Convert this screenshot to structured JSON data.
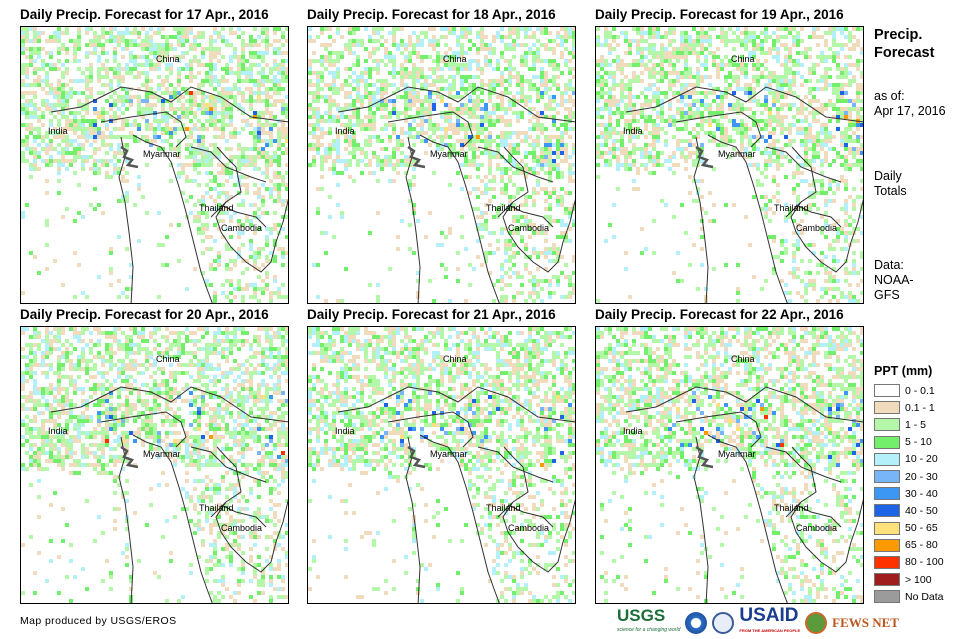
{
  "panels": [
    {
      "title": "Daily Precip. Forecast for 17 Apr., 2016"
    },
    {
      "title": "Daily Precip. Forecast for 18 Apr., 2016"
    },
    {
      "title": "Daily Precip. Forecast for 19 Apr., 2016"
    },
    {
      "title": "Daily Precip. Forecast for 20 Apr., 2016"
    },
    {
      "title": "Daily Precip. Forecast for 21 Apr., 2016"
    },
    {
      "title": "Daily Precip. Forecast for 22 Apr., 2016"
    }
  ],
  "countries": [
    "China",
    "India",
    "Myanmar",
    "Thailand",
    "Cambodia"
  ],
  "side": {
    "title1": "Precip.",
    "title2": "Forecast",
    "asof1": "as of:",
    "asof2": "Apr 17, 2016",
    "daily1": "Daily",
    "daily2": "Totals",
    "data1": "Data:",
    "data2": "NOAA-",
    "data3": "GFS"
  },
  "legend": {
    "title": "PPT (mm)",
    "items": [
      {
        "label": "0 - 0.1",
        "color": "#ffffff"
      },
      {
        "label": "0.1 - 1",
        "color": "#f0dcbc"
      },
      {
        "label": "1 - 5",
        "color": "#b4f7a8"
      },
      {
        "label": "5 - 10",
        "color": "#74ef6c"
      },
      {
        "label": "10 - 20",
        "color": "#b4f0fa"
      },
      {
        "label": "20 - 30",
        "color": "#78b4f8"
      },
      {
        "label": "30 - 40",
        "color": "#3c96f4"
      },
      {
        "label": "40 - 50",
        "color": "#1e64e6"
      },
      {
        "label": "50 - 65",
        "color": "#fde27c"
      },
      {
        "label": "65 - 80",
        "color": "#fd9a00"
      },
      {
        "label": "80 - 100",
        "color": "#fe3200"
      },
      {
        "label": "> 100",
        "color": "#a01e1e"
      },
      {
        "label": "No Data",
        "color": "#9b9b9b"
      }
    ]
  },
  "footer": "Map produced by USGS/EROS",
  "logos": {
    "usgs": "USGS",
    "usgs_tag": "science for a changing world",
    "usaid": "USAID",
    "usaid_tag": "FROM THE AMERICAN PEOPLE",
    "fews": "FEWS NET"
  }
}
